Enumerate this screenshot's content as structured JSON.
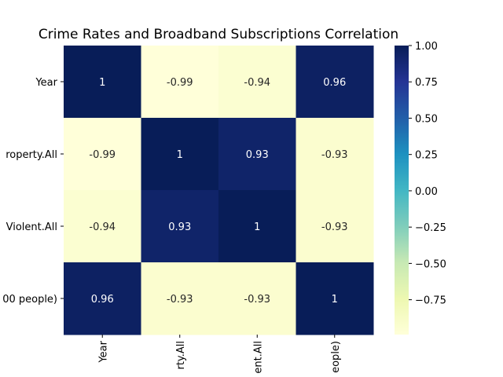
{
  "chart_data": {
    "type": "heatmap",
    "title": "Crime Rates and Broadband Subscriptions Correlation",
    "row_labels": [
      "Year",
      "roperty.All",
      "Violent.All",
      "00 people)"
    ],
    "col_labels": [
      "Year",
      "rty.All",
      "ent.All",
      "eople)"
    ],
    "values": [
      [
        1,
        -0.99,
        -0.94,
        0.96
      ],
      [
        -0.99,
        1,
        0.93,
        -0.93
      ],
      [
        -0.94,
        0.93,
        1,
        -0.93
      ],
      [
        0.96,
        -0.93,
        -0.93,
        1
      ]
    ],
    "annotations": [
      [
        "1",
        "-0.99",
        "-0.94",
        "0.96"
      ],
      [
        "-0.99",
        "1",
        "0.93",
        "-0.93"
      ],
      [
        "-0.94",
        "0.93",
        "1",
        "-0.93"
      ],
      [
        "0.96",
        "-0.93",
        "-0.93",
        "1"
      ]
    ],
    "colormap": "YlGnBu",
    "color_range": [
      -0.99,
      1
    ],
    "colorbar_ticks": [
      "1.00",
      "0.75",
      "0.50",
      "0.25",
      "0.00",
      "−0.25",
      "−0.50",
      "−0.75"
    ],
    "colorbar_tick_values": [
      1.0,
      0.75,
      0.5,
      0.25,
      0.0,
      -0.25,
      -0.5,
      -0.75
    ]
  }
}
